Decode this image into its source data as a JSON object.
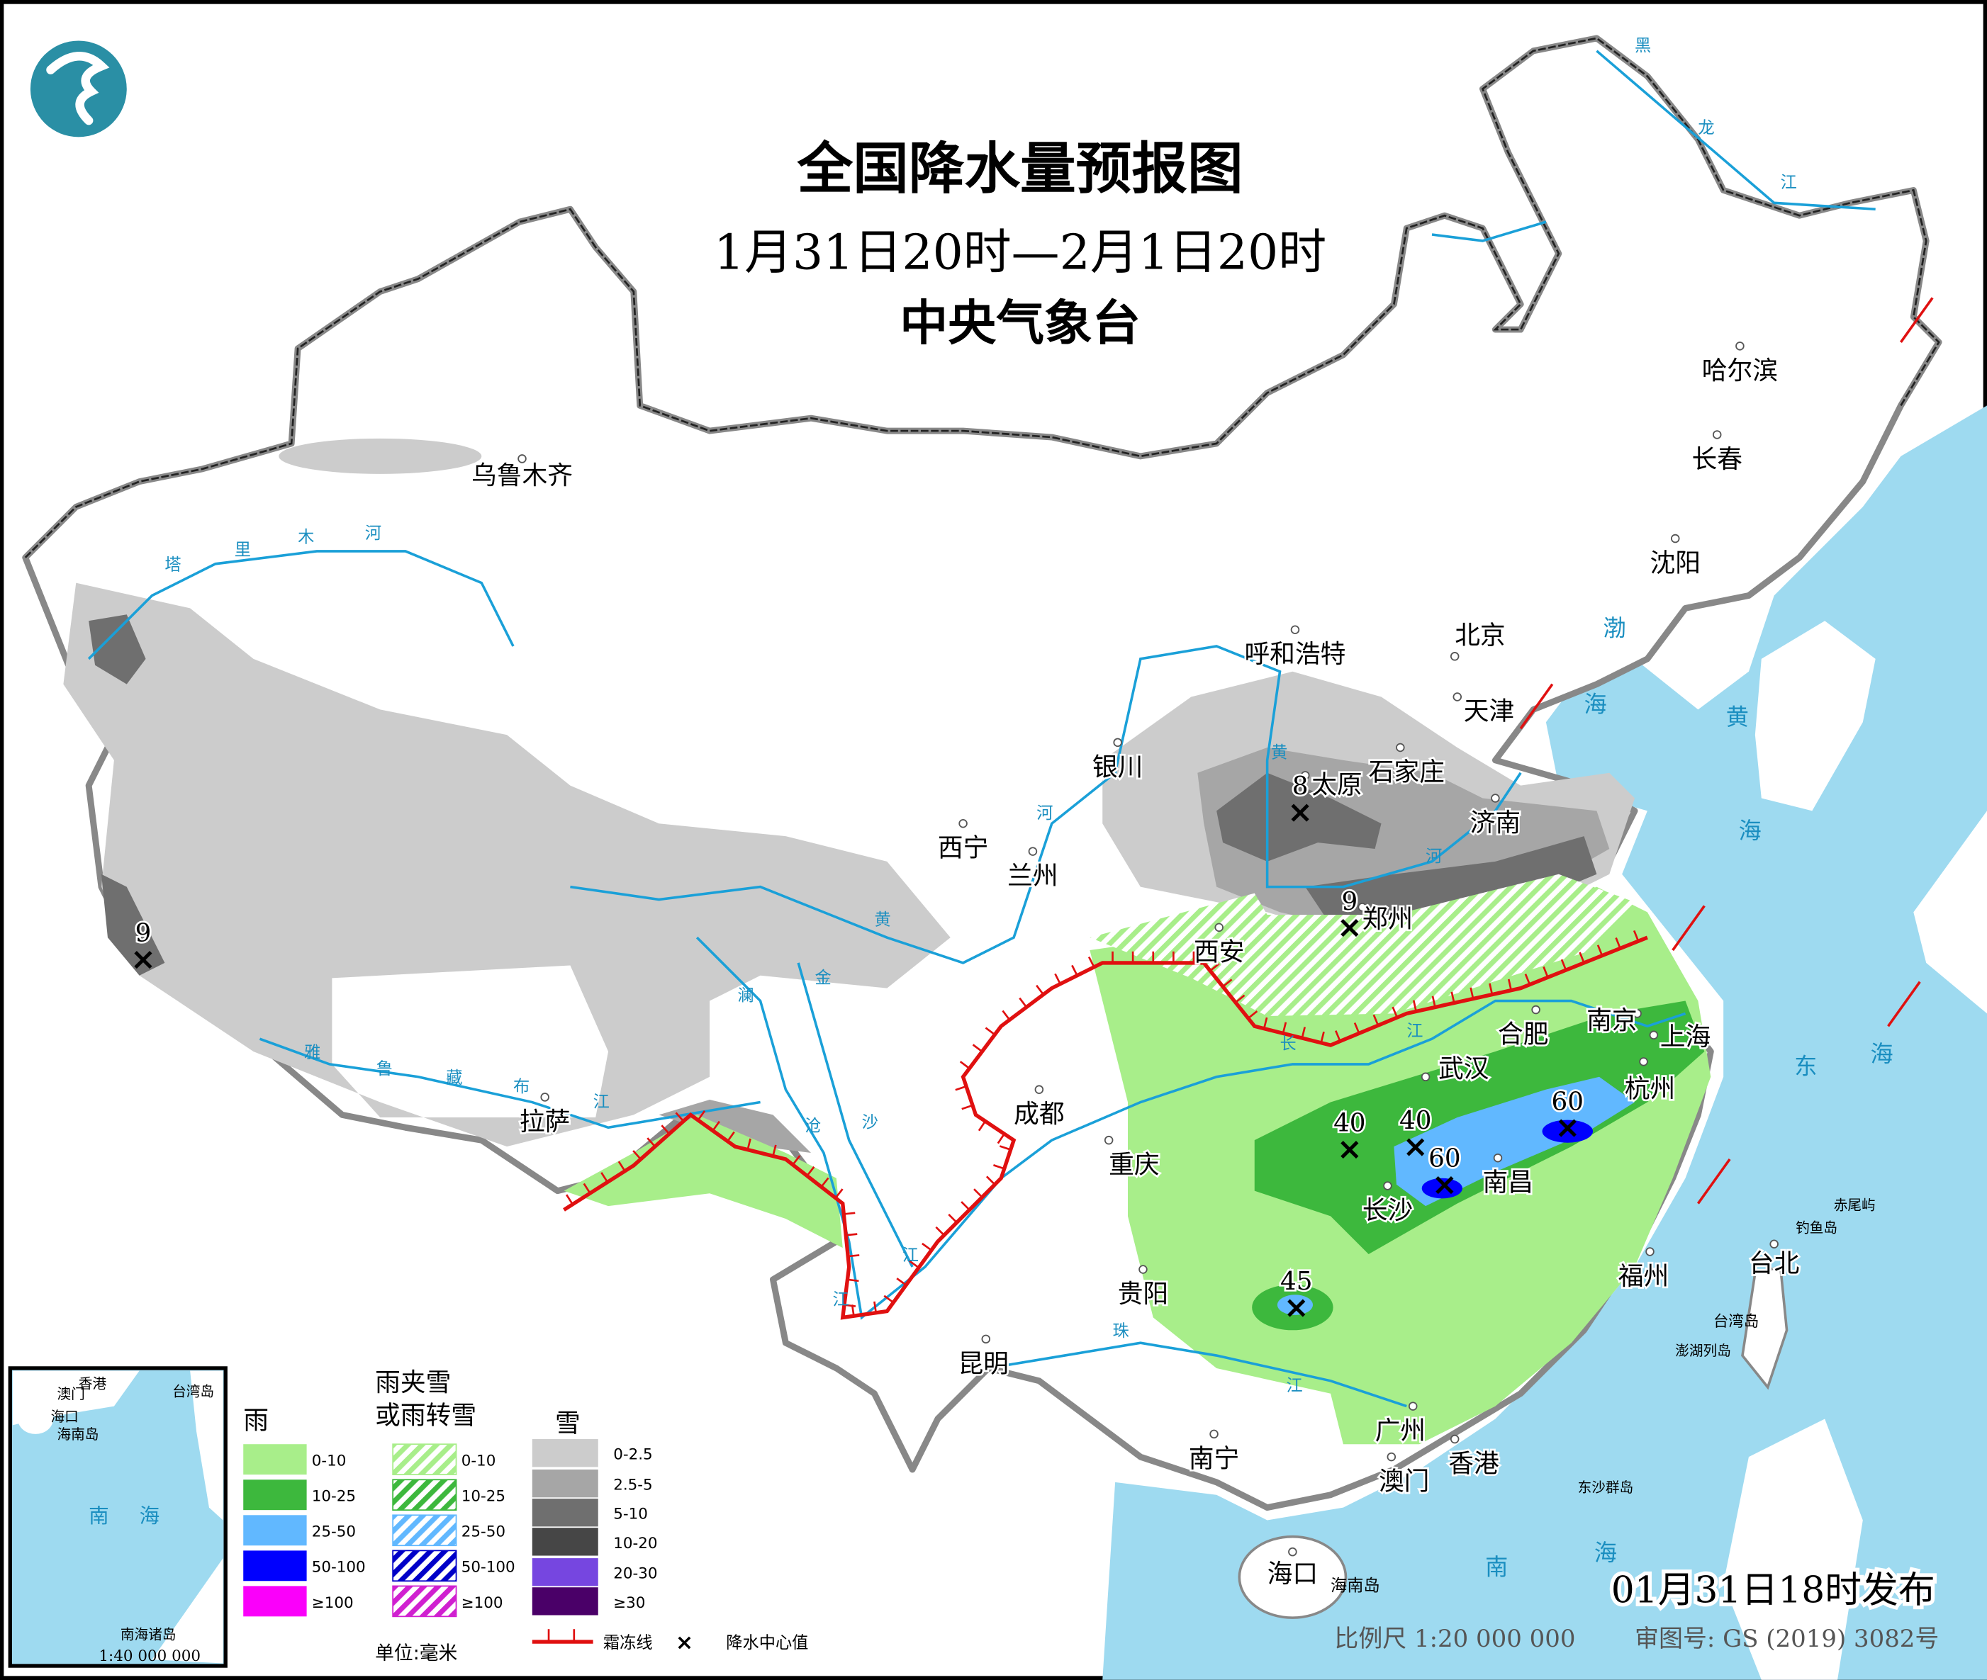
{
  "header": {
    "title": "全国降水量预报图",
    "period": "1月31日20时—2月1日20时",
    "issuer": "中央气象台"
  },
  "cities": [
    "乌鲁木齐",
    "哈尔滨",
    "长春",
    "沈阳",
    "北京",
    "天津",
    "呼和浩特",
    "石家庄",
    "太原",
    "济南",
    "银川",
    "西宁",
    "兰州",
    "西安",
    "郑州",
    "南京",
    "合肥",
    "上海",
    "武汉",
    "杭州",
    "成都",
    "重庆",
    "长沙",
    "南昌",
    "拉萨",
    "贵阳",
    "福州",
    "台北",
    "昆明",
    "南宁",
    "广州",
    "香港",
    "澳门",
    "海口"
  ],
  "map_labels": {
    "rivers": [
      "塔",
      "里",
      "木",
      "河",
      "雅",
      "鲁",
      "藏",
      "布",
      "江",
      "黄",
      "河",
      "黄",
      "河",
      "长",
      "江",
      "金",
      "沙",
      "江",
      "澜",
      "沧",
      "江",
      "珠",
      "江",
      "黑",
      "龙",
      "江"
    ],
    "seas": [
      "渤",
      "海",
      "黄",
      "海",
      "东",
      "海",
      "南",
      "海"
    ],
    "islands": [
      "赤尾屿",
      "钓鱼岛",
      "台湾岛",
      "澎湖列岛",
      "东沙群岛",
      "海南岛"
    ]
  },
  "precip_centers": [
    {
      "value": "8",
      "near": "太原"
    },
    {
      "value": "9",
      "near": "郑州"
    },
    {
      "value": "9",
      "near": "西藏西部"
    },
    {
      "value": "40",
      "near": "湖南北部"
    },
    {
      "value": "40",
      "near": "湖南北部"
    },
    {
      "value": "60",
      "near": "长沙"
    },
    {
      "value": "60",
      "near": "南昌"
    },
    {
      "value": "45",
      "near": "贵州东部"
    }
  ],
  "inset": {
    "labels": [
      "香港",
      "澳门",
      "台湾岛",
      "海口",
      "海南岛",
      "南",
      "海",
      "南海诸岛"
    ],
    "scale": "1:40 000 000"
  },
  "legend": {
    "rain": {
      "title": "雨",
      "items": [
        {
          "label": "0-10",
          "color": "#a8ee8a"
        },
        {
          "label": "10-25",
          "color": "#3db83d"
        },
        {
          "label": "25-50",
          "color": "#61b8ff"
        },
        {
          "label": "50-100",
          "color": "#0000fe"
        },
        {
          "label": "≥100",
          "color": "#fa00fa"
        }
      ]
    },
    "mixed": {
      "title_line1": "雨夹雪",
      "title_line2": "或雨转雪",
      "items": [
        {
          "label": "0-10",
          "color": "#a8ee8a"
        },
        {
          "label": "10-25",
          "color": "#3db83d"
        },
        {
          "label": "25-50",
          "color": "#61b8ff"
        },
        {
          "label": "50-100",
          "color": "#0000c8"
        },
        {
          "label": "≥100",
          "color": "#d020d0"
        }
      ]
    },
    "snow": {
      "title": "雪",
      "items": [
        {
          "label": "0-2.5",
          "color": "#cccccc"
        },
        {
          "label": "2.5-5",
          "color": "#a6a6a6"
        },
        {
          "label": "5-10",
          "color": "#6f6f6f"
        },
        {
          "label": "10-20",
          "color": "#464646"
        },
        {
          "label": "20-30",
          "color": "#7646e0"
        },
        {
          "label": "≥30",
          "color": "#4a0068"
        }
      ]
    },
    "unit": "单位:毫米",
    "frost_line": "霜冻线",
    "center_value": "降水中心值"
  },
  "footer": {
    "issued": "01月31日18时发布",
    "scale": "比例尺 1:20 000 000",
    "approval": "审图号: GS (2019) 3082号"
  },
  "colors": {
    "sea": "#9edaf0",
    "frost_line": "#e01010",
    "river": "#1aa0d8",
    "logo": "#2a8fa5"
  }
}
